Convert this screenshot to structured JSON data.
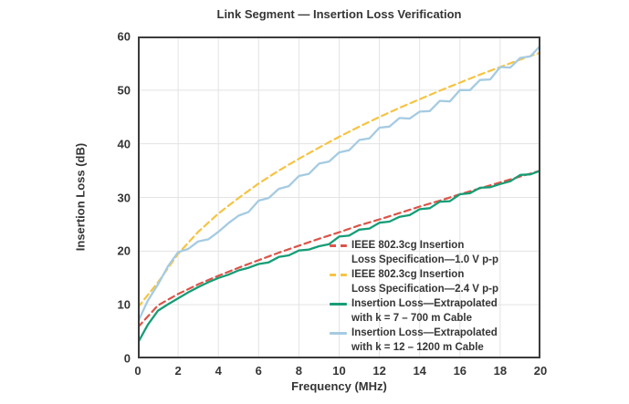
{
  "chart_data": {
    "type": "line",
    "title": "Link Segment — Insertion Loss Verification",
    "xlabel": "Frequency (MHz)",
    "ylabel": "Insertion Loss (dB)",
    "xlim": [
      0,
      20
    ],
    "ylim": [
      0,
      60
    ],
    "xticks": [
      0,
      2,
      4,
      6,
      8,
      10,
      12,
      14,
      16,
      18,
      20
    ],
    "yticks": [
      0,
      10,
      20,
      30,
      40,
      50,
      60
    ],
    "grid": true,
    "legend_position": "inside bottom-right",
    "series": [
      {
        "key": "spec-1v0",
        "name": "IEEE 802.3cg Insertion Loss Specification—1.0 V p-p",
        "legend_lines": [
          "IEEE 802.3cg Insertion",
          "Loss Specification—1.0 V p-p"
        ],
        "color": "#dc5449",
        "style": "dashed",
        "x": [
          0,
          1,
          2,
          3,
          4,
          5,
          6,
          7,
          8,
          9,
          10,
          11,
          12,
          13,
          14,
          15,
          16,
          17,
          18,
          19,
          20
        ],
        "y": [
          5.8,
          9.9,
          12.0,
          13.8,
          15.4,
          16.9,
          18.3,
          19.7,
          21.0,
          22.3,
          23.5,
          24.8,
          25.9,
          27.1,
          28.3,
          29.4,
          30.6,
          31.7,
          32.8,
          33.9,
          35.0
        ]
      },
      {
        "key": "spec-2v4",
        "name": "IEEE 802.3cg Insertion Loss Specification—2.4 V p-p",
        "legend_lines": [
          "IEEE 802.3cg Insertion",
          "Loss Specification—2.4 V p-p"
        ],
        "color": "#f5c444",
        "style": "dashed",
        "x": [
          0,
          1,
          2,
          3,
          4,
          5,
          6,
          7,
          8,
          9,
          10,
          11,
          12,
          13,
          14,
          15,
          16,
          17,
          18,
          19,
          20
        ],
        "y": [
          9.5,
          14.2,
          19.5,
          23.6,
          27.0,
          29.9,
          32.6,
          35.0,
          37.2,
          39.3,
          41.3,
          43.2,
          45.0,
          46.7,
          48.3,
          49.9,
          51.4,
          52.9,
          54.3,
          55.7,
          57.0
        ]
      },
      {
        "key": "cable-700m",
        "name": "Insertion Loss—Extrapolated with k = 7 – 700 m Cable",
        "legend_lines": [
          "Insertion Loss—Extrapolated",
          "with k = 7 – 700 m Cable"
        ],
        "color": "#169d76",
        "style": "solid",
        "x": [
          0,
          0.5,
          1,
          1.5,
          2,
          2.5,
          3,
          3.5,
          4,
          4.5,
          5,
          5.5,
          6,
          6.5,
          7,
          7.5,
          8,
          8.5,
          9,
          9.5,
          10,
          10.5,
          11,
          11.5,
          12,
          12.5,
          13,
          13.5,
          14,
          14.5,
          15,
          15.5,
          16,
          16.5,
          17,
          17.5,
          18,
          18.5,
          19,
          19.5,
          20
        ],
        "y": [
          2.9,
          6.3,
          8.9,
          10.1,
          11.2,
          12.3,
          13.3,
          14.2,
          15.0,
          15.6,
          16.4,
          16.9,
          17.6,
          17.9,
          18.9,
          19.2,
          20.1,
          20.3,
          20.9,
          21.3,
          22.7,
          22.9,
          24.0,
          24.2,
          25.3,
          25.5,
          26.4,
          26.7,
          27.8,
          28.0,
          29.2,
          29.3,
          30.6,
          30.8,
          31.8,
          31.9,
          32.5,
          33.0,
          34.2,
          34.3,
          35.0
        ]
      },
      {
        "key": "cable-1200m",
        "name": "Insertion Loss—Extrapolated with k = 12 – 1200 m Cable",
        "legend_lines": [
          "Insertion Loss—Extrapolated",
          "with k = 12 – 1200 m Cable"
        ],
        "color": "#a5cbe2",
        "style": "solid",
        "x": [
          0,
          0.5,
          1,
          1.5,
          2,
          2.5,
          3,
          3.5,
          4,
          4.5,
          5,
          5.5,
          6,
          6.5,
          7,
          7.5,
          8,
          8.5,
          9,
          9.5,
          10,
          10.5,
          11,
          11.5,
          12,
          12.5,
          13,
          13.5,
          14,
          14.5,
          15,
          15.5,
          16,
          16.5,
          17,
          17.5,
          18,
          18.5,
          19,
          19.5,
          20
        ],
        "y": [
          6.8,
          10.8,
          13.8,
          17.2,
          19.8,
          20.4,
          21.8,
          22.2,
          23.6,
          25.2,
          26.6,
          27.3,
          29.4,
          29.9,
          31.6,
          32.1,
          34.0,
          34.4,
          36.3,
          36.7,
          38.4,
          38.8,
          40.7,
          41.0,
          43.0,
          43.2,
          44.8,
          44.7,
          46.0,
          46.1,
          48.0,
          47.9,
          50.0,
          50.0,
          51.9,
          52.0,
          54.3,
          54.2,
          56.0,
          56.3,
          58.3
        ]
      }
    ],
    "colors": {
      "text": "#353535",
      "gridline": "#e3e3e3",
      "spine": "#3b3b3b",
      "background": "#ffffff"
    }
  }
}
